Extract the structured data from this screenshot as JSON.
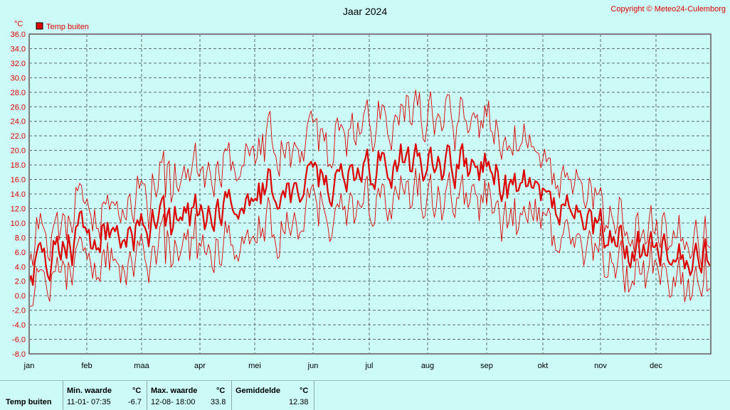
{
  "title": "Jaar 2024",
  "copyright": "Copyright © Meteo24-Culemborg",
  "colors": {
    "background": "#ccfbf7",
    "grid": "#5d6b6b",
    "series": "#dd0000",
    "axis_text": "#dd0000",
    "frame": "#7f7f7f"
  },
  "chart_data": {
    "type": "line",
    "title": "Jaar 2024",
    "ylabel": "°C",
    "ylim": [
      -8,
      36
    ],
    "y_ticks": [
      "36.0",
      "34.0",
      "32.0",
      "30.0",
      "28.0",
      "26.0",
      "24.0",
      "22.0",
      "20.0",
      "18.0",
      "16.0",
      "14.0",
      "12.0",
      "10.0",
      "8.0",
      "6.0",
      "4.0",
      "2.0",
      "0.0",
      "-2.0",
      "-4.0",
      "-6.0",
      "-8.0"
    ],
    "x_ticks": [
      "jan",
      "feb",
      "maa",
      "apr",
      "mei",
      "jun",
      "jul",
      "aug",
      "sep",
      "okt",
      "nov",
      "dec"
    ],
    "legend": {
      "label": "Temp buiten",
      "position": "top-left"
    },
    "grid": true,
    "series": [
      {
        "name": "Temp buiten",
        "style": "mean",
        "x": [
          "jan",
          "feb",
          "maa",
          "apr",
          "mei",
          "jun",
          "jul",
          "aug",
          "sep",
          "okt",
          "nov",
          "dec"
        ],
        "values": [
          3.5,
          8.0,
          9.0,
          11.0,
          14.5,
          15.5,
          17.5,
          19.0,
          16.5,
          12.5,
          7.5,
          5.5
        ]
      },
      {
        "name": "max",
        "style": "thin",
        "x": [
          "jan",
          "feb",
          "maa",
          "apr",
          "mei",
          "jun",
          "jul",
          "aug",
          "sep",
          "okt",
          "nov",
          "dec"
        ],
        "values": [
          6.5,
          11.5,
          13.5,
          16.5,
          21.0,
          21.0,
          24.0,
          25.5,
          22.5,
          16.5,
          10.5,
          8.0
        ]
      },
      {
        "name": "min",
        "style": "thin",
        "x": [
          "jan",
          "feb",
          "maa",
          "apr",
          "mei",
          "jun",
          "jul",
          "aug",
          "sep",
          "okt",
          "nov",
          "dec"
        ],
        "values": [
          0.5,
          4.5,
          5.0,
          6.5,
          9.5,
          11.0,
          13.0,
          14.5,
          12.0,
          8.5,
          4.5,
          2.5
        ]
      }
    ]
  },
  "stats": {
    "series_label": "Temp buiten",
    "min_header": "Min. waarde",
    "min_unit": "°C",
    "min_time": "11-01-  07:35",
    "min_value": "-6.7",
    "max_header": "Max. waarde",
    "max_unit": "°C",
    "max_time": "12-08-  18:00",
    "max_value": "33.8",
    "avg_header": "Gemiddelde",
    "avg_unit": "°C",
    "avg_value": "12.38"
  }
}
